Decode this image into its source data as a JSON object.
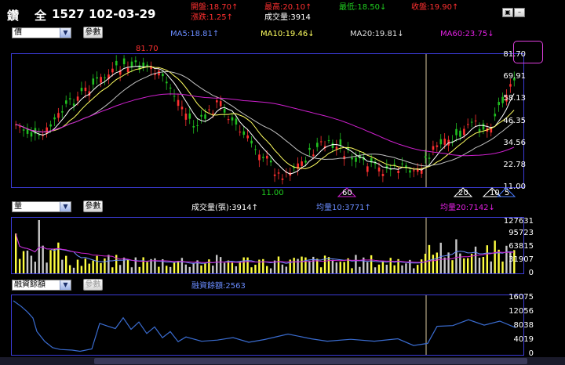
{
  "header": {
    "symbol": "鑽",
    "market": "全",
    "code_date": "1527 102-03-29",
    "open": "開盤:18.70↑",
    "high": "最高:20.10↑",
    "low": "最低:18.50↓",
    "close": "收盤:19.90↑",
    "change": "漲跌:1.25↑",
    "volume": "成交量:3914"
  },
  "price_panel": {
    "select_value": "價",
    "param_button": "參數",
    "ma5": "MA5:18.81↑",
    "ma10": "MA10:19.46↓",
    "ma20": "MA20:19.81↓",
    "ma60": "MA60:23.75↓",
    "axis": [
      "81.70",
      "69.91",
      "58.13",
      "46.35",
      "34.56",
      "22.78",
      "11.00"
    ],
    "high_label": "81.70",
    "low_label": "11.00",
    "marker_60": "60",
    "marker_20": "20",
    "marker_10": "10",
    "marker_5": "5"
  },
  "volume_panel": {
    "select_value": "量",
    "param_button": "參數",
    "volume_label": "成交量(張):3914↑",
    "avg10": "均量10:3771↑",
    "avg20": "均量20:7142↓",
    "axis": [
      "127631",
      "95723",
      "63815",
      "31907",
      "0"
    ]
  },
  "margin_panel": {
    "select_value": "融資餘額",
    "param_button": "參數",
    "label": "融資餘額:2563",
    "axis": [
      "16075",
      "12056",
      "8038",
      "4019",
      "0"
    ]
  },
  "colors": {
    "up": "#ff3030",
    "down": "#20c020",
    "ma5": "#ffffff",
    "ma10": "#ffff60",
    "ma20": "#c0c0c0",
    "ma60": "#d020d0",
    "volume_bar": "#ffff40",
    "margin_line": "#3a6cd0",
    "panel_border": "#3b3bd6"
  }
}
